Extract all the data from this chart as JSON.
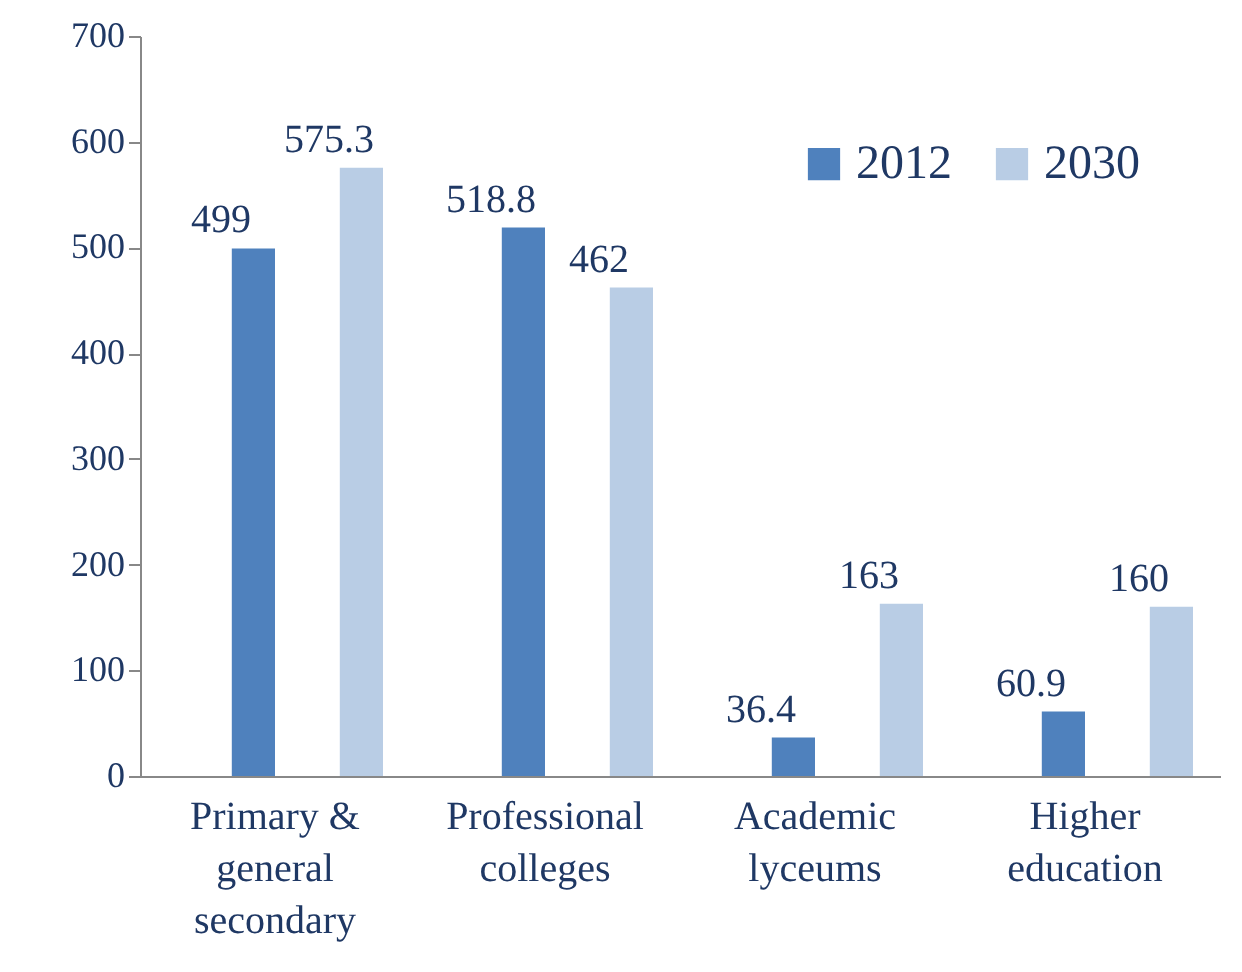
{
  "chart_data": {
    "type": "bar",
    "categories": [
      "Primary & general secondary",
      "Professional colleges",
      "Academic lyceums",
      "Higher education"
    ],
    "series": [
      {
        "name": "2012",
        "color": "#4f81bd",
        "values": [
          499,
          518.8,
          36.4,
          60.9
        ]
      },
      {
        "name": "2030",
        "color": "#b9cde5",
        "values": [
          575.3,
          462,
          163,
          160
        ]
      }
    ],
    "ylim": [
      0,
      700
    ],
    "yticks": [
      0,
      100,
      200,
      300,
      400,
      500,
      600,
      700
    ],
    "grid": false,
    "legend": "top right",
    "data_labels": true
  }
}
